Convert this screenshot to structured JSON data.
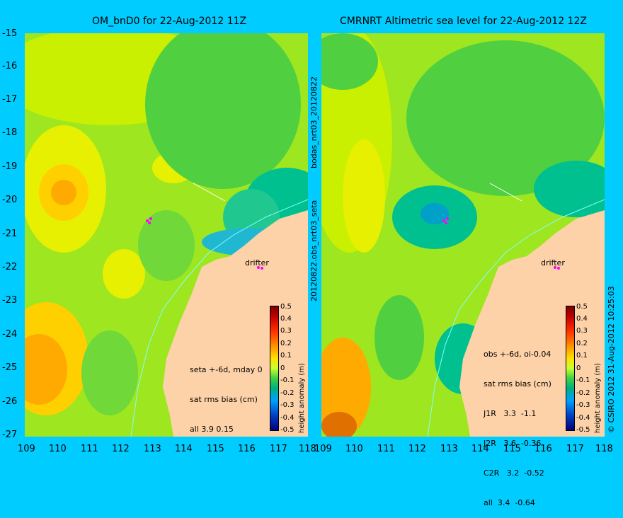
{
  "left_panel": {
    "title": "OM_bnD0 for 22-Aug-2012 11Z",
    "y_ticks": [
      "-15",
      "-16",
      "-17",
      "-18",
      "-19",
      "-20",
      "-21",
      "-22",
      "-23",
      "-24",
      "-25",
      "-26",
      "-27"
    ],
    "x_ticks": [
      "109",
      "110",
      "111",
      "112",
      "113",
      "114",
      "115",
      "116",
      "117",
      "118"
    ],
    "legend_lines": [
      "seta +-6d, mday 0",
      "sat rms bias (cm)",
      "all 3.9 0.15"
    ],
    "drifter_label": "drifter"
  },
  "right_panel": {
    "title": "CMRNRT Altimetric sea level  for 22-Aug-2012 12Z",
    "x_ticks": [
      "109",
      "110",
      "111",
      "112",
      "113",
      "114",
      "115",
      "116",
      "117",
      "118"
    ],
    "legend_lines": [
      "obs +-6d, oi-0.04",
      "sat rms bias (cm)",
      "J1R   3.3  -1.1",
      "J2R   3.6  -0.36",
      "C2R   3.2  -0.52",
      "all  3.4  -0.64"
    ],
    "drifter_label": "drifter"
  },
  "side_labels": {
    "top": "bodas_nrt03_20120822",
    "bottom": "20120822.obs_nrt03_seta",
    "copyright": "© CSIRO 2012   31-Aug-2012 10:25:03"
  },
  "colorbar": {
    "ticks": [
      "0.5",
      "0.4",
      "0.3",
      "0.2",
      "0.1",
      "0",
      "-0.1",
      "-0.2",
      "-0.3",
      "-0.4",
      "-0.5"
    ],
    "label": "height anomaly (m)"
  },
  "colors": {
    "background": "#00ccff",
    "land": "#fdd2a8",
    "sea_base": "#9ee620",
    "drifter": "#ff00ff"
  }
}
